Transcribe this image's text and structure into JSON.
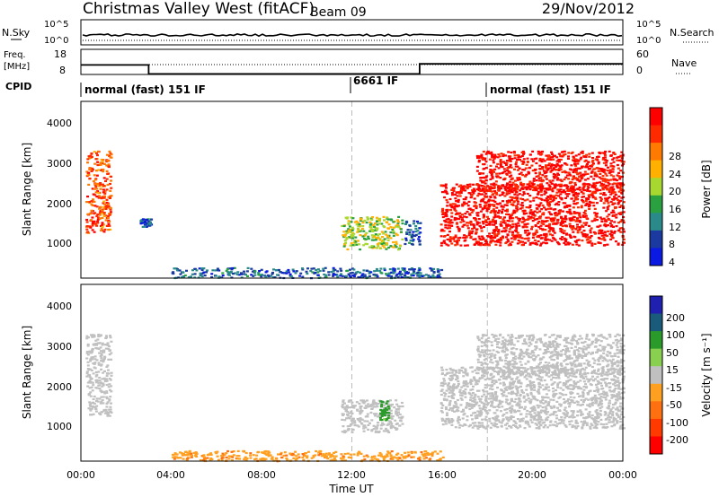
{
  "header": {
    "station": "Christmas Valley West (fitACF)",
    "beam": "Beam 09",
    "date": "29/Nov/2012"
  },
  "strips": {
    "nsky_label": "N.Sky",
    "nsky_left_ticks": [
      "10^5",
      "10^0"
    ],
    "nsearch_label": "N.Search",
    "nsearch_right_ticks": [
      "10^5",
      "10^0"
    ],
    "freq_label_1": "Freq.",
    "freq_label_2": "[MHz]",
    "freq_left_ticks": [
      "18",
      "8"
    ],
    "nave_label": "Nave",
    "nave_right_ticks": [
      "60",
      "0"
    ],
    "cpid_label": "CPID",
    "cpid_segments": [
      "normal (fast) 151 IF",
      "6661 IF",
      "normal (fast) 151 IF"
    ]
  },
  "axes": {
    "xlabel": "Time UT",
    "ylabel": "Slant Range [km]",
    "x_ticks": [
      "00:00",
      "04:00",
      "08:00",
      "12:00",
      "16:00",
      "20:00",
      "00:00"
    ],
    "y_ticks": [
      "1000",
      "2000",
      "3000",
      "4000"
    ]
  },
  "colorbars": {
    "power_label": "Power [dB]",
    "power_ticks": [
      "28",
      "24",
      "20",
      "16",
      "12",
      "8",
      "4"
    ],
    "power_colors": [
      "#ff0000",
      "#ff2a00",
      "#ff7a00",
      "#ffb000",
      "#a8d830",
      "#2aa040",
      "#2a8a8a",
      "#1a3aa0",
      "#0a1ae0"
    ],
    "velocity_label": "Velocity [m s⁻¹]",
    "velocity_ticks": [
      "200",
      "100",
      "50",
      "15",
      "-15",
      "-50",
      "-100",
      "-200"
    ],
    "velocity_colors": [
      "#2020b0",
      "#1a5a7a",
      "#2a9a2a",
      "#8ad050",
      "#c0c0c0",
      "#ffa020",
      "#ff7010",
      "#ff3a00",
      "#ff0000"
    ]
  },
  "chart_data": [
    {
      "type": "heatmap",
      "title": "Power [dB]",
      "xlabel": "Time UT",
      "ylabel": "Slant Range [km]",
      "xlim": [
        0,
        24
      ],
      "ylim": [
        180,
        4500
      ],
      "regions": [
        {
          "t": [
            0.2,
            1.3
          ],
          "r": [
            1300,
            3300
          ],
          "power": 24
        },
        {
          "t": [
            2.6,
            3.1
          ],
          "r": [
            1450,
            1650
          ],
          "power": 8
        },
        {
          "t": [
            4.0,
            16.0
          ],
          "r": [
            200,
            450
          ],
          "power": 8
        },
        {
          "t": [
            11.5,
            14.2
          ],
          "r": [
            900,
            1700
          ],
          "power": 16
        },
        {
          "t": [
            14.3,
            15.0
          ],
          "r": [
            1000,
            1600
          ],
          "power": 8
        },
        {
          "t": [
            15.9,
            24.0
          ],
          "r": [
            1000,
            2500
          ],
          "power": 28
        },
        {
          "t": [
            17.5,
            24.0
          ],
          "r": [
            2300,
            3300
          ],
          "power": 28
        }
      ]
    },
    {
      "type": "heatmap",
      "title": "Velocity [m s⁻¹]",
      "xlabel": "Time UT",
      "ylabel": "Slant Range [km]",
      "xlim": [
        0,
        24
      ],
      "ylim": [
        180,
        4500
      ],
      "regions": [
        {
          "t": [
            0.2,
            1.3
          ],
          "r": [
            1300,
            3300
          ],
          "velocity": 0
        },
        {
          "t": [
            4.0,
            16.0
          ],
          "r": [
            200,
            450
          ],
          "velocity": -40
        },
        {
          "t": [
            11.5,
            14.2
          ],
          "r": [
            900,
            1700
          ],
          "velocity": 0
        },
        {
          "t": [
            13.2,
            13.6
          ],
          "r": [
            1200,
            1700
          ],
          "velocity": 40
        },
        {
          "t": [
            15.9,
            24.0
          ],
          "r": [
            1000,
            2500
          ],
          "velocity": 0
        },
        {
          "t": [
            17.5,
            24.0
          ],
          "r": [
            2300,
            3300
          ],
          "velocity": 0
        }
      ]
    },
    {
      "type": "line",
      "title": "Freq. [MHz]",
      "series": [
        {
          "x": [
            0,
            3,
            3,
            15,
            15,
            24
          ],
          "values": [
            11.8,
            11.8,
            8.2,
            8.2,
            12.2,
            12.2
          ]
        }
      ]
    }
  ]
}
